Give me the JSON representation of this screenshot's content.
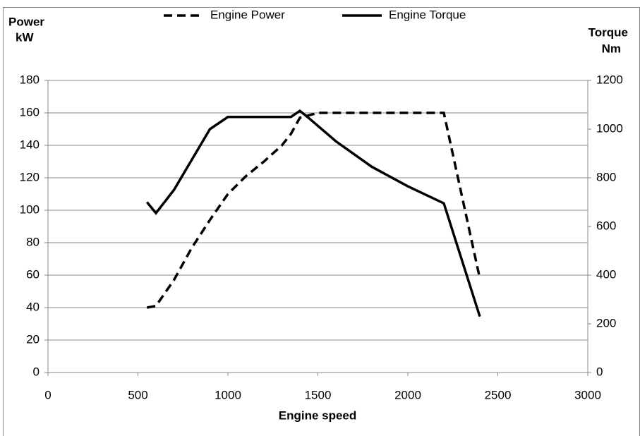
{
  "chart_data": {
    "type": "line",
    "legend": "top",
    "x_label": "Engine speed",
    "y_label": "Power",
    "y_unit": "kW",
    "y2_label": "Torque",
    "y2_unit": "Nm",
    "xlim": [
      0,
      3000
    ],
    "xticks": [
      0,
      500,
      1000,
      1500,
      2000,
      2500,
      3000
    ],
    "ylim": [
      0,
      180
    ],
    "yticks": [
      0,
      20,
      40,
      60,
      80,
      100,
      120,
      140,
      160,
      180
    ],
    "y2lim": [
      0,
      1200
    ],
    "y2ticks": [
      0,
      200,
      400,
      600,
      800,
      1000,
      1200
    ],
    "grid": true,
    "series": [
      {
        "name": "Engine Power",
        "color": "#000000",
        "dash": true,
        "axis": "y",
        "x": [
          550,
          600,
          700,
          800,
          900,
          1000,
          1100,
          1200,
          1300,
          1350,
          1400,
          1500,
          1600,
          1800,
          2000,
          2200,
          2400
        ],
        "values": [
          40,
          41,
          57,
          77,
          94,
          110,
          121,
          130,
          140,
          147,
          157,
          160,
          160,
          160,
          160,
          160,
          58
        ]
      },
      {
        "name": "Engine Torque",
        "color": "#000000",
        "dash": false,
        "axis": "y2",
        "x": [
          550,
          600,
          700,
          800,
          900,
          1000,
          1200,
          1350,
          1400,
          1450,
          1600,
          1800,
          2000,
          2200,
          2400
        ],
        "values": [
          700,
          655,
          750,
          875,
          1000,
          1050,
          1050,
          1050,
          1075,
          1045,
          950,
          845,
          765,
          695,
          230
        ]
      }
    ]
  }
}
